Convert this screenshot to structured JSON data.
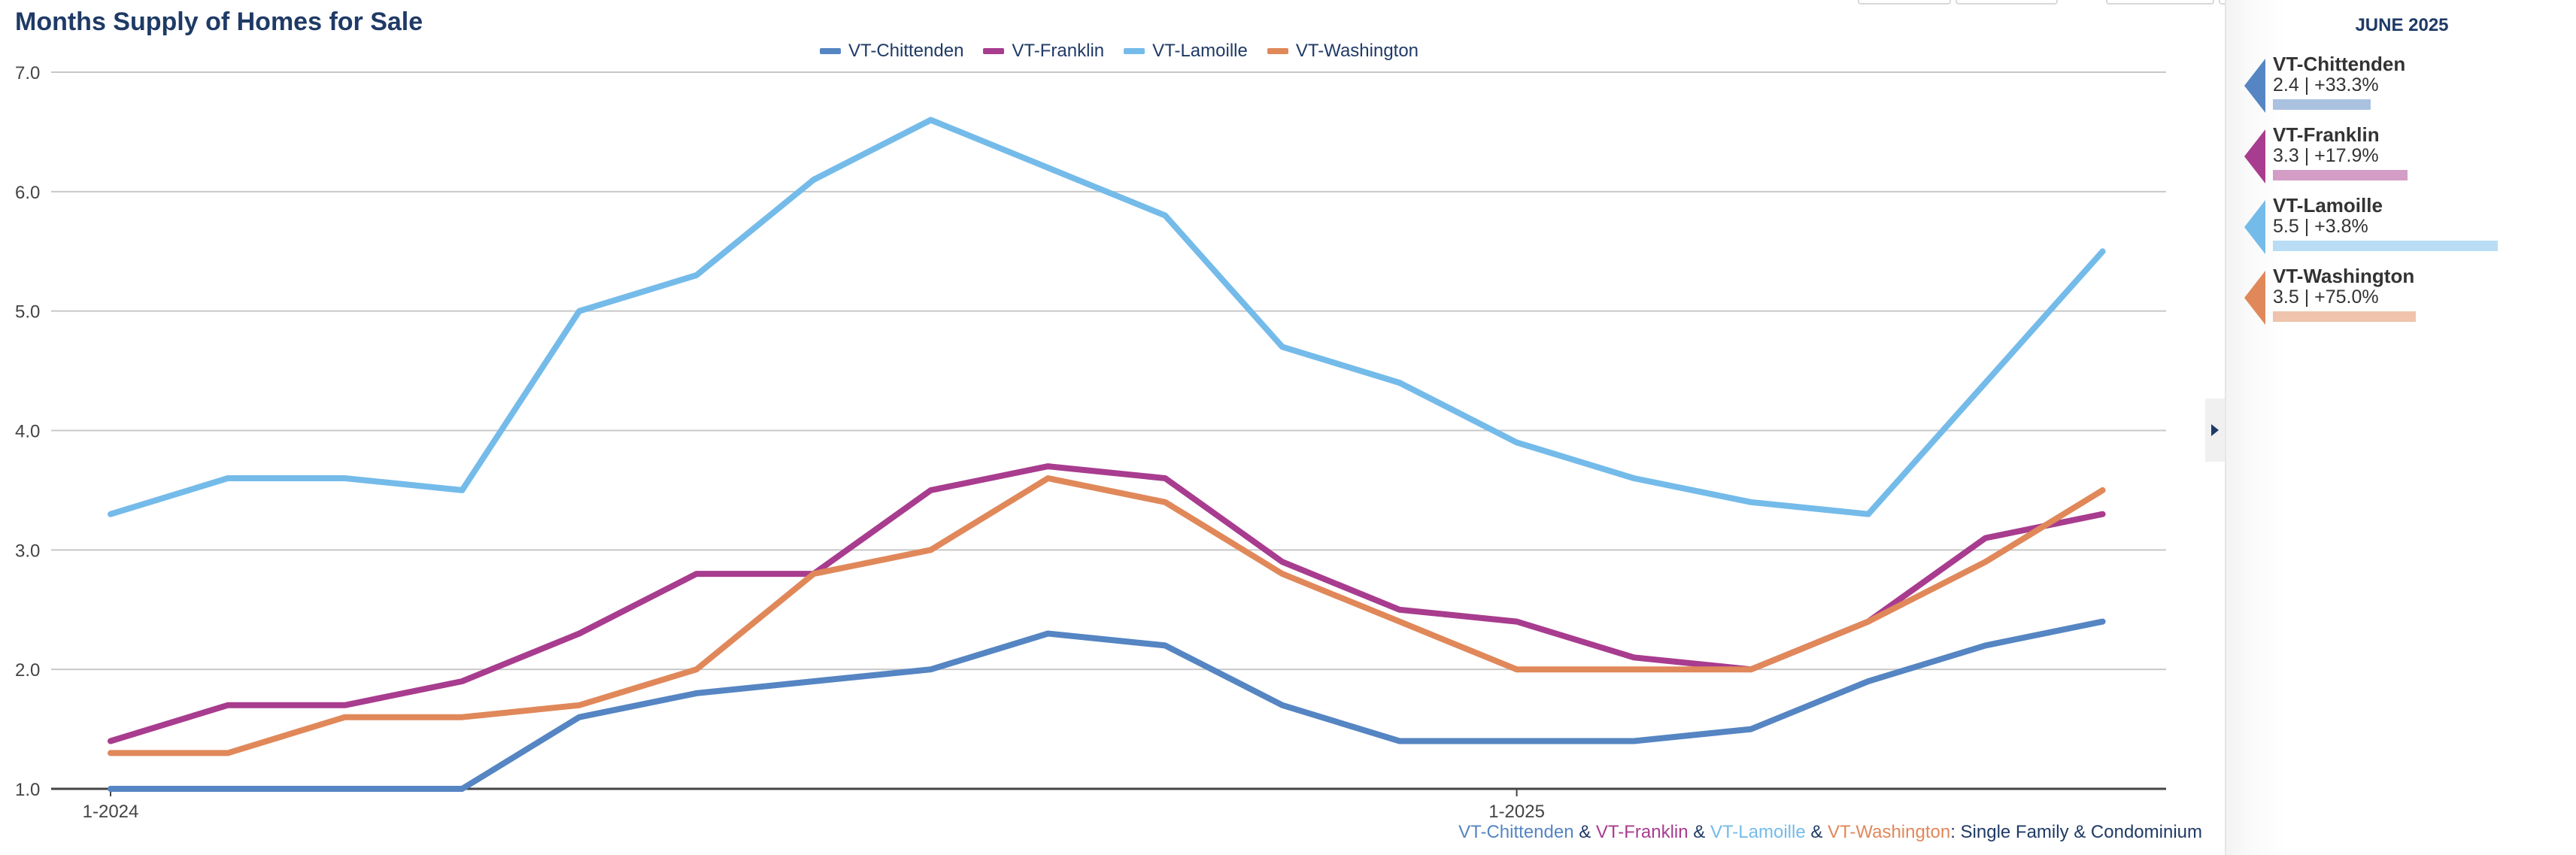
{
  "title": "Months Supply of Homes for Sale",
  "period_label": "JUNE 2025",
  "footer": {
    "regions": [
      "VT-Chittenden",
      "VT-Franklin",
      "VT-Lamoille",
      "VT-Washington"
    ],
    "joiner": " & ",
    "suffix": ": Single Family & Condominium"
  },
  "panel": [
    {
      "name": "VT-Chittenden",
      "value": "2.4 | +33.3%",
      "level": 2.4
    },
    {
      "name": "VT-Franklin",
      "value": "3.3 | +17.9%",
      "level": 3.3
    },
    {
      "name": "VT-Lamoille",
      "value": "5.5 | +3.8%",
      "level": 5.5
    },
    {
      "name": "VT-Washington",
      "value": "3.5 | +75.0%",
      "level": 3.5
    }
  ],
  "chart_data": {
    "type": "line",
    "title": "Months Supply of Homes for Sale",
    "x": [
      "1-2024",
      "2-2024",
      "3-2024",
      "4-2024",
      "5-2024",
      "6-2024",
      "7-2024",
      "8-2024",
      "9-2024",
      "10-2024",
      "11-2024",
      "12-2024",
      "1-2025",
      "2-2025",
      "3-2025",
      "4-2025",
      "5-2025",
      "6-2025"
    ],
    "x_tick_labels": [
      "1-2024",
      "1-2025"
    ],
    "ylim": [
      1.0,
      7.0
    ],
    "y_ticks": [
      "1.0",
      "2.0",
      "3.0",
      "4.0",
      "5.0",
      "6.0",
      "7.0"
    ],
    "grid": true,
    "legend_position": "top-center",
    "series": [
      {
        "name": "VT-Chittenden",
        "color": "#5585c2",
        "values": [
          1.0,
          1.0,
          1.0,
          1.0,
          1.6,
          1.8,
          1.9,
          2.0,
          2.3,
          2.2,
          1.7,
          1.4,
          1.4,
          1.4,
          1.5,
          1.9,
          2.2,
          2.4
        ]
      },
      {
        "name": "VT-Franklin",
        "color": "#a83c8e",
        "values": [
          1.4,
          1.7,
          1.7,
          1.9,
          2.3,
          2.8,
          2.8,
          3.5,
          3.7,
          3.6,
          2.9,
          2.5,
          2.4,
          2.1,
          2.0,
          2.4,
          3.1,
          3.3
        ]
      },
      {
        "name": "VT-Lamoille",
        "color": "#74bbea",
        "values": [
          3.3,
          3.6,
          3.6,
          3.5,
          5.0,
          5.3,
          6.1,
          6.6,
          6.2,
          5.8,
          4.7,
          4.4,
          3.9,
          3.6,
          3.4,
          3.3,
          4.4,
          5.5
        ]
      },
      {
        "name": "VT-Washington",
        "color": "#e0885a",
        "values": [
          1.3,
          1.3,
          1.6,
          1.6,
          1.7,
          2.0,
          2.8,
          3.0,
          3.6,
          3.4,
          2.8,
          2.4,
          2.0,
          2.0,
          2.0,
          2.4,
          2.9,
          3.5
        ]
      }
    ]
  }
}
